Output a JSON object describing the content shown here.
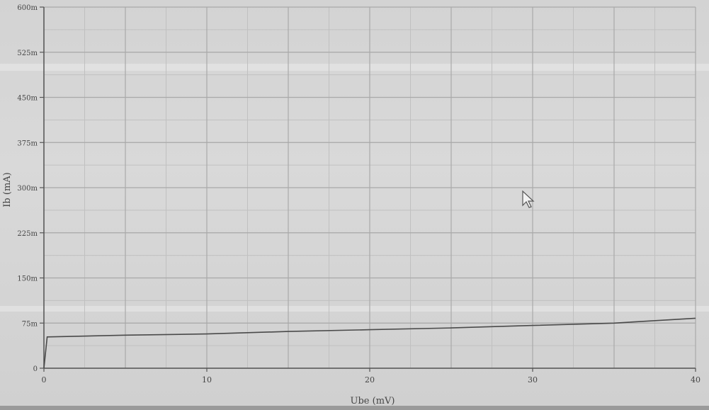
{
  "chart_data": {
    "type": "line",
    "title": "",
    "xlabel": "Ube (mV)",
    "ylabel": "Ib (mA)",
    "xlim": [
      0,
      40
    ],
    "ylim": [
      0,
      600
    ],
    "x_ticks": [
      0,
      10,
      20,
      30,
      40
    ],
    "y_ticks": [
      0,
      75,
      150,
      225,
      300,
      375,
      450,
      525,
      600
    ],
    "y_tick_labels": [
      "0",
      "75m",
      "150m",
      "225m",
      "300m",
      "375m",
      "450m",
      "525m",
      "600m"
    ],
    "grid": true,
    "legend": "none",
    "series": [
      {
        "x": [
          0,
          0.2,
          5,
          10,
          15,
          20,
          25,
          30,
          35,
          40
        ],
        "y": [
          0,
          52,
          55,
          57,
          61,
          64,
          67,
          71,
          75,
          83
        ],
        "color": "#4a4a4a"
      }
    ]
  },
  "colors": {
    "background": "#d6d6d6",
    "grid_major": "#a9a9a9",
    "grid_minor": "#c0c0c0",
    "axis": "#555555",
    "line": "#4a4a4a",
    "screen_band": "#e6e6e6"
  },
  "icons": {
    "cursor": "mouse-pointer-icon"
  }
}
